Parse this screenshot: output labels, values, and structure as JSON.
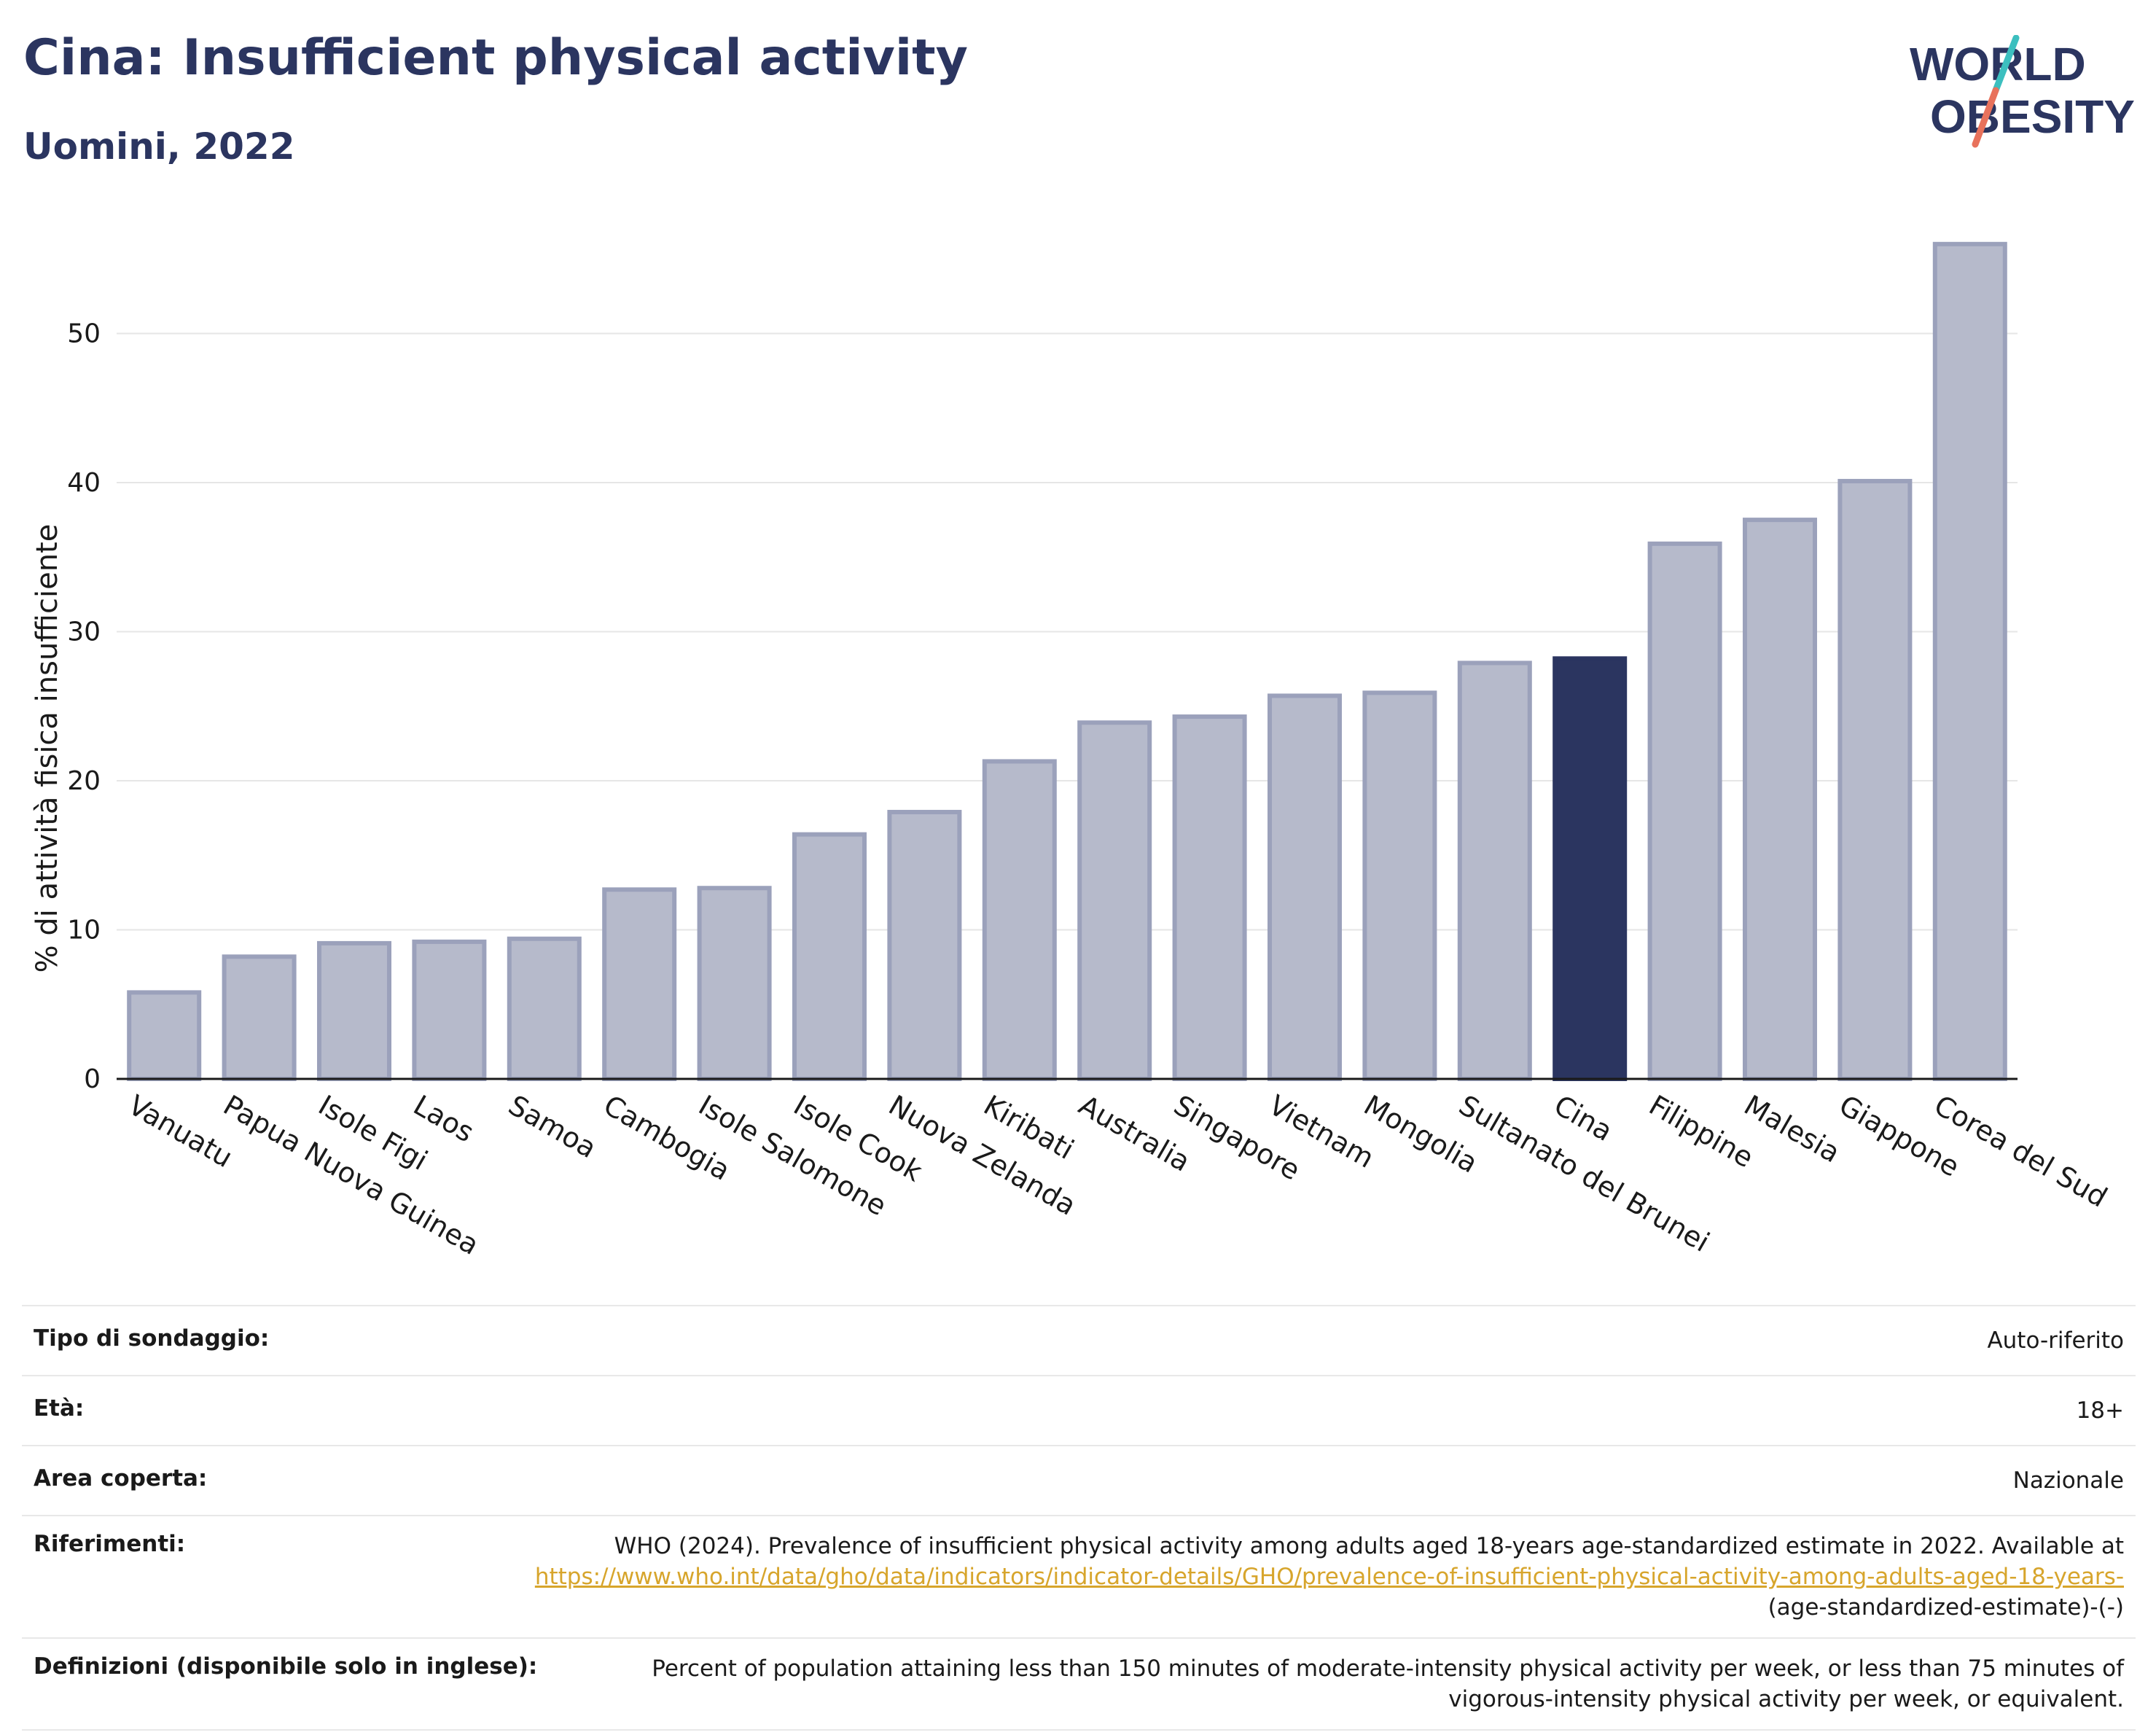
{
  "header": {
    "title": "Cina: Insufficient physical activity",
    "subtitle": "Uomini, 2022"
  },
  "logo": {
    "line1": "WORLD",
    "line2": "OBESITY"
  },
  "chart_data": {
    "type": "bar",
    "title": "Cina: Insufficient physical activity",
    "subtitle": "Uomini, 2022",
    "ylabel": "% di attività fisica insufficiente",
    "xlabel": "",
    "ylim": [
      0,
      58
    ],
    "yticks": [
      0,
      10,
      20,
      30,
      40,
      50
    ],
    "grid": true,
    "highlight": "Cina",
    "colors": {
      "bar": "#b6bacb",
      "bar_edge": "#9ba1bb",
      "highlight": "#2b3560"
    },
    "categories": [
      "Vanuatu",
      "Papua Nuova Guinea",
      "Isole Figi",
      "Laos",
      "Samoa",
      "Cambogia",
      "Isole Salomone",
      "Isole Cook",
      "Nuova Zelanda",
      "Kiribati",
      "Australia",
      "Singapore",
      "Vietnam",
      "Mongolia",
      "Sultanato del Brunei",
      "Cina",
      "Filippine",
      "Malesia",
      "Giappone",
      "Corea del Sud"
    ],
    "values": [
      5.8,
      8.2,
      9.1,
      9.2,
      9.4,
      12.7,
      12.8,
      16.4,
      17.9,
      21.3,
      23.9,
      24.3,
      25.7,
      25.9,
      27.9,
      28.2,
      35.9,
      37.5,
      40.1,
      56.0
    ]
  },
  "meta": {
    "survey_label": "Tipo di sondaggio:",
    "survey_value": "Auto-riferito",
    "age_label": "Età:",
    "age_value": "18+",
    "area_label": "Area coperta:",
    "area_value": "Nazionale",
    "ref_label": "Riferimenti:",
    "ref_text": "WHO (2024). Prevalence of insufficient physical activity among adults aged 18-years age-standardized estimate in 2022. Available at",
    "ref_link": "https://www.who.int/data/gho/data/indicators/indicator-details/GHO/prevalence-of-insufficient-physical-activity-among-adults-aged-18-years-",
    "ref_suffix": "(age-standardized-estimate)-(-)",
    "def_label": "Definizioni (disponibile solo in inglese):",
    "def_text": "Percent of population attaining less than 150 minutes of moderate-intensity physical activity per week, or less than 75 minutes of vigorous-intensity physical activity per week, or equivalent."
  }
}
